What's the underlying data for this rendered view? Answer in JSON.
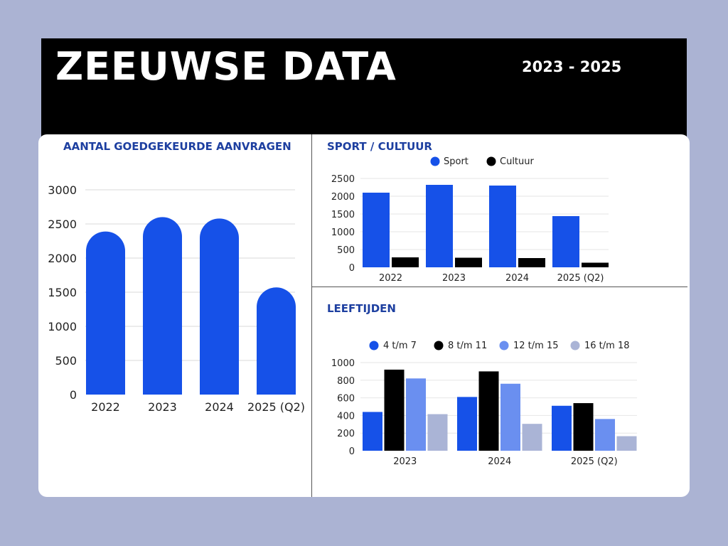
{
  "header": {
    "title": "ZEEUWSE DATA",
    "years": "2023 - 2025"
  },
  "colors": {
    "blue": "#1651e8",
    "black": "#000000",
    "light_blue": "#6a8ff0",
    "lavender": "#aab4d6",
    "title_blue": "#1d3fa0"
  },
  "chart_data": [
    {
      "id": "aanvragen",
      "type": "bar",
      "title": "AANTAL GOEDGEKEURDE AANVRAGEN",
      "categories": [
        "2022",
        "2023",
        "2024",
        "2025 (Q2)"
      ],
      "values": [
        2390,
        2600,
        2580,
        1570
      ],
      "ylim": [
        0,
        3000
      ],
      "yticks": [
        "3000",
        "2500",
        "2000",
        "1500",
        "1000",
        "500",
        "0"
      ],
      "grid": true
    },
    {
      "id": "sport_cultuur",
      "type": "bar",
      "title": "SPORT / CULTUUR",
      "categories": [
        "2022",
        "2023",
        "2024",
        "2025 (Q2)"
      ],
      "series": [
        {
          "name": "Sport",
          "values": [
            2100,
            2320,
            2300,
            1440
          ]
        },
        {
          "name": "Cultuur",
          "values": [
            280,
            270,
            260,
            130
          ]
        }
      ],
      "ylim": [
        0,
        2500
      ],
      "yticks": [
        "2500",
        "2000",
        "1500",
        "1000",
        "500",
        "0"
      ],
      "legend": "top",
      "grid": true
    },
    {
      "id": "leeftijden",
      "type": "bar",
      "title": "LEEFTIJDEN",
      "categories": [
        "2023",
        "2024",
        "2025 (Q2)"
      ],
      "series": [
        {
          "name": "4 t/m 7",
          "values": [
            440,
            610,
            510
          ]
        },
        {
          "name": "8 t/m 11",
          "values": [
            920,
            900,
            540
          ]
        },
        {
          "name": "12 t/m 15",
          "values": [
            820,
            760,
            360
          ]
        },
        {
          "name": "16 t/m 18",
          "values": [
            415,
            305,
            165
          ]
        }
      ],
      "ylim": [
        0,
        1000
      ],
      "yticks": [
        "1000",
        "800",
        "600",
        "400",
        "200",
        "0"
      ],
      "legend": "top",
      "grid": true
    }
  ]
}
